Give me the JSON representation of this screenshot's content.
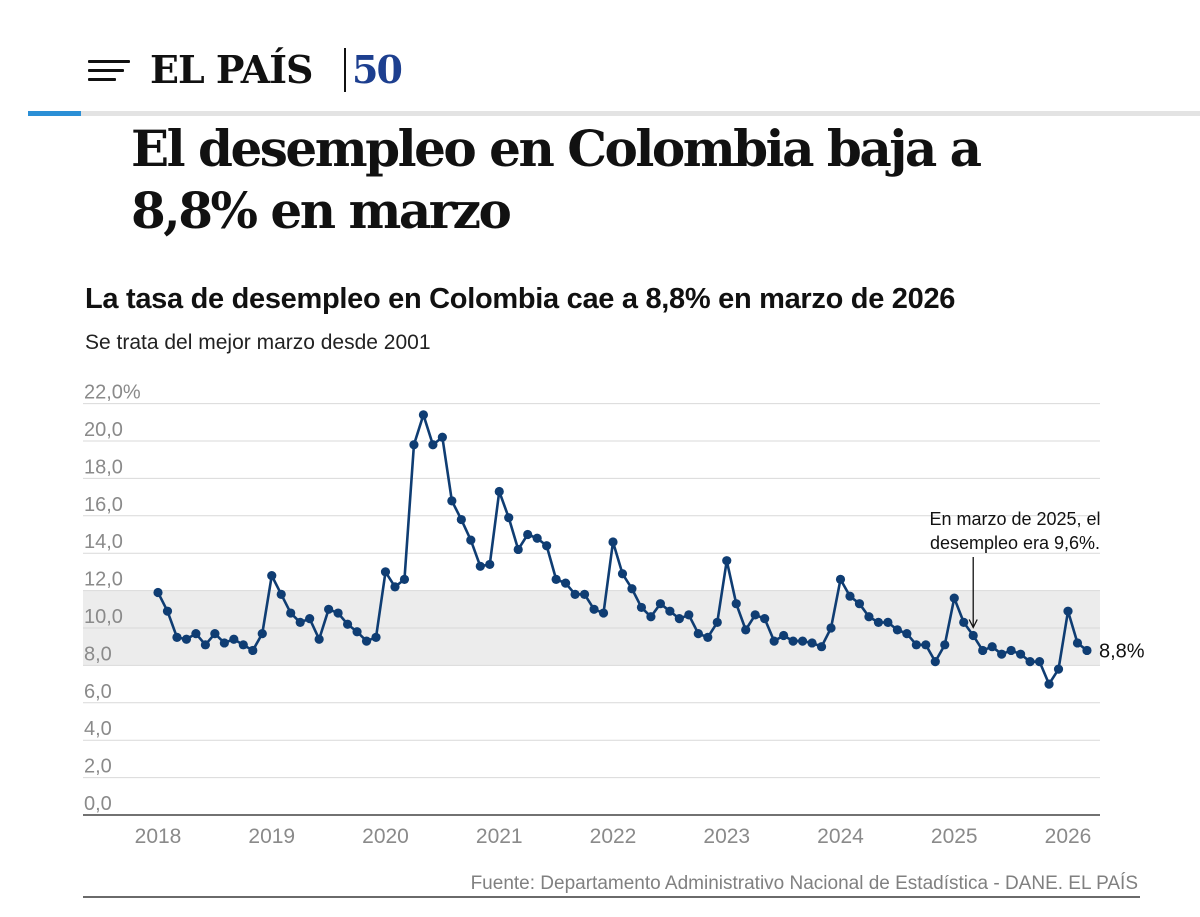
{
  "header": {
    "brand": "EL PAÍS",
    "anniversary": "50"
  },
  "article": {
    "headline_line1": "El desempleo en Colombia baja a",
    "headline_line2": "8,8% en marzo"
  },
  "chart_data": {
    "type": "line",
    "title": "La tasa de desempleo en Colombia cae a 8,8% en marzo de 2026",
    "subtitle": "Se trata del mejor marzo desde 2001",
    "xlabel": "",
    "ylabel": "",
    "ylim": [
      0,
      22
    ],
    "y_ticks": [
      "22,0%",
      "20,0",
      "18,0",
      "16,0",
      "14,0",
      "12,0",
      "10,0",
      "8,0",
      "6,0",
      "4,0",
      "2,0",
      "0,0"
    ],
    "x_ticks": [
      "2018",
      "2019",
      "2020",
      "2021",
      "2022",
      "2023",
      "2024",
      "2025",
      "2026"
    ],
    "grid": true,
    "shaded_band": [
      8,
      12
    ],
    "colors": {
      "line": "#0f3d73",
      "band": "#ececec",
      "grid": "#d9d9d9"
    },
    "series": [
      {
        "name": "",
        "x": [
          "2018-01",
          "2018-02",
          "2018-03",
          "2018-04",
          "2018-05",
          "2018-06",
          "2018-07",
          "2018-08",
          "2018-09",
          "2018-10",
          "2018-11",
          "2018-12",
          "2019-01",
          "2019-02",
          "2019-03",
          "2019-04",
          "2019-05",
          "2019-06",
          "2019-07",
          "2019-08",
          "2019-09",
          "2019-10",
          "2019-11",
          "2019-12",
          "2020-01",
          "2020-02",
          "2020-03",
          "2020-04",
          "2020-05",
          "2020-06",
          "2020-07",
          "2020-08",
          "2020-09",
          "2020-10",
          "2020-11",
          "2020-12",
          "2021-01",
          "2021-02",
          "2021-03",
          "2021-04",
          "2021-05",
          "2021-06",
          "2021-07",
          "2021-08",
          "2021-09",
          "2021-10",
          "2021-11",
          "2021-12",
          "2022-01",
          "2022-02",
          "2022-03",
          "2022-04",
          "2022-05",
          "2022-06",
          "2022-07",
          "2022-08",
          "2022-09",
          "2022-10",
          "2022-11",
          "2022-12",
          "2023-01",
          "2023-02",
          "2023-03",
          "2023-04",
          "2023-05",
          "2023-06",
          "2023-07",
          "2023-08",
          "2023-09",
          "2023-10",
          "2023-11",
          "2023-12",
          "2024-01",
          "2024-02",
          "2024-03",
          "2024-04",
          "2024-05",
          "2024-06",
          "2024-07",
          "2024-08",
          "2024-09",
          "2024-10",
          "2024-11",
          "2024-12",
          "2025-01",
          "2025-02",
          "2025-03",
          "2025-04",
          "2025-05",
          "2025-06",
          "2025-07",
          "2025-08",
          "2025-09",
          "2025-10",
          "2025-11",
          "2025-12",
          "2026-01",
          "2026-02",
          "2026-03"
        ],
        "values": [
          11.9,
          10.9,
          9.5,
          9.4,
          9.7,
          9.1,
          9.7,
          9.2,
          9.4,
          9.1,
          8.8,
          9.7,
          12.8,
          11.8,
          10.8,
          10.3,
          10.5,
          9.4,
          11.0,
          10.8,
          10.2,
          9.8,
          9.3,
          9.5,
          13.0,
          12.2,
          12.6,
          19.8,
          21.4,
          19.8,
          20.2,
          16.8,
          15.8,
          14.7,
          13.3,
          13.4,
          17.3,
          15.9,
          14.2,
          15.0,
          14.8,
          14.4,
          12.6,
          12.4,
          11.8,
          11.8,
          11.0,
          10.8,
          14.6,
          12.9,
          12.1,
          11.1,
          10.6,
          11.3,
          10.9,
          10.5,
          10.7,
          9.7,
          9.5,
          10.3,
          13.6,
          11.3,
          9.9,
          10.7,
          10.5,
          9.3,
          9.6,
          9.3,
          9.3,
          9.2,
          9.0,
          10.0,
          12.6,
          11.7,
          11.3,
          10.6,
          10.3,
          10.3,
          9.9,
          9.7,
          9.1,
          9.1,
          8.2,
          9.1,
          11.6,
          10.3,
          9.6,
          8.8,
          9.0,
          8.6,
          8.8,
          8.6,
          8.2,
          8.2,
          7.0,
          7.8,
          10.9,
          9.2,
          8.8
        ]
      }
    ],
    "last_value_label": "8,8%",
    "annotation": {
      "x": "2025-03",
      "y": 9.6,
      "line1": "En marzo de 2025, el",
      "line2": "desempleo era 9,6%."
    },
    "source": "Fuente: Departamento Administrativo Nacional de Estadística - DANE. EL PAÍS"
  }
}
